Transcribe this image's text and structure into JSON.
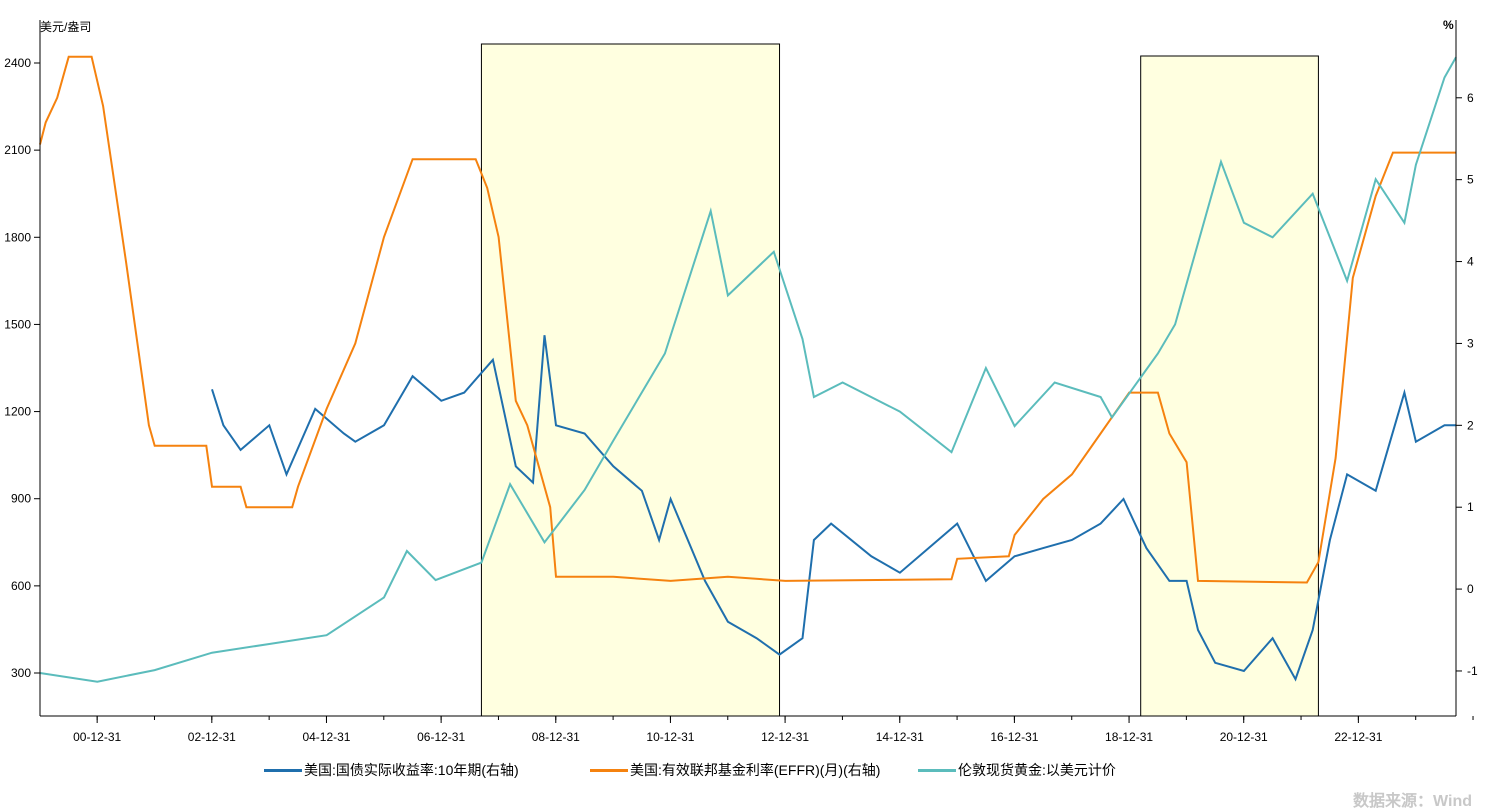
{
  "chart_data": {
    "type": "line",
    "left_axis": {
      "label": "美元/盎司",
      "ticks": [
        300,
        600,
        900,
        1200,
        1500,
        1800,
        2100,
        2400
      ],
      "range": [
        152,
        2548
      ]
    },
    "right_axis": {
      "label": "%",
      "ticks": [
        -1,
        0,
        1,
        2,
        3,
        4,
        5,
        6
      ],
      "range": [
        -1.55,
        6.95
      ]
    },
    "x_axis": {
      "ticks": [
        "00-12-31",
        "02-12-31",
        "04-12-31",
        "06-12-31",
        "08-12-31",
        "10-12-31",
        "12-12-31",
        "14-12-31",
        "16-12-31",
        "18-12-31",
        "20-12-31",
        "22-12-31"
      ],
      "range": [
        2000.0,
        2024.7
      ]
    },
    "highlight_periods": [
      [
        2007.7,
        2012.9
      ],
      [
        2019.2,
        2022.3
      ]
    ],
    "highlight_color": "#ffffe0",
    "series": [
      {
        "name": "美国:国债实际收益率:10年期(右轴)",
        "axis": "right",
        "color": "#1f6fad",
        "points": [
          [
            2003.0,
            2.44
          ],
          [
            2003.2,
            2.0
          ],
          [
            2003.5,
            1.7
          ],
          [
            2004.0,
            2.0
          ],
          [
            2004.3,
            1.4
          ],
          [
            2004.8,
            2.2
          ],
          [
            2005.3,
            1.9
          ],
          [
            2005.5,
            1.8
          ],
          [
            2006.0,
            2.0
          ],
          [
            2006.5,
            2.6
          ],
          [
            2007.0,
            2.3
          ],
          [
            2007.4,
            2.4
          ],
          [
            2007.9,
            2.8
          ],
          [
            2008.3,
            1.5
          ],
          [
            2008.6,
            1.3
          ],
          [
            2008.8,
            3.1
          ],
          [
            2009.0,
            2.0
          ],
          [
            2009.5,
            1.9
          ],
          [
            2010.0,
            1.5
          ],
          [
            2010.5,
            1.2
          ],
          [
            2010.8,
            0.6
          ],
          [
            2011.0,
            1.1
          ],
          [
            2011.6,
            0.1
          ],
          [
            2012.0,
            -0.4
          ],
          [
            2012.5,
            -0.6
          ],
          [
            2012.9,
            -0.8
          ],
          [
            2013.3,
            -0.6
          ],
          [
            2013.5,
            0.6
          ],
          [
            2013.8,
            0.8
          ],
          [
            2014.5,
            0.4
          ],
          [
            2015.0,
            0.2
          ],
          [
            2015.5,
            0.5
          ],
          [
            2016.0,
            0.8
          ],
          [
            2016.5,
            0.1
          ],
          [
            2017.0,
            0.4
          ],
          [
            2017.5,
            0.5
          ],
          [
            2018.0,
            0.6
          ],
          [
            2018.5,
            0.8
          ],
          [
            2018.9,
            1.1
          ],
          [
            2019.3,
            0.5
          ],
          [
            2019.7,
            0.1
          ],
          [
            2020.0,
            0.1
          ],
          [
            2020.2,
            -0.5
          ],
          [
            2020.5,
            -0.9
          ],
          [
            2021.0,
            -1.0
          ],
          [
            2021.5,
            -0.6
          ],
          [
            2021.9,
            -1.1
          ],
          [
            2022.2,
            -0.5
          ],
          [
            2022.5,
            0.6
          ],
          [
            2022.8,
            1.4
          ],
          [
            2023.3,
            1.2
          ],
          [
            2023.8,
            2.4
          ],
          [
            2024.0,
            1.8
          ],
          [
            2024.5,
            2.0
          ],
          [
            2024.7,
            2.0
          ]
        ]
      },
      {
        "name": "美国:有效联邦基金利率(EFFR)(月)(右轴)",
        "axis": "right",
        "color": "#f5820f",
        "points": [
          [
            2000.0,
            5.43
          ],
          [
            2000.1,
            5.7
          ],
          [
            2000.3,
            6.0
          ],
          [
            2000.5,
            6.5
          ],
          [
            2000.9,
            6.5
          ],
          [
            2001.1,
            5.9
          ],
          [
            2001.5,
            4.0
          ],
          [
            2001.9,
            2.0
          ],
          [
            2002.0,
            1.75
          ],
          [
            2002.9,
            1.75
          ],
          [
            2003.0,
            1.25
          ],
          [
            2003.5,
            1.25
          ],
          [
            2003.6,
            1.0
          ],
          [
            2004.4,
            1.0
          ],
          [
            2004.5,
            1.25
          ],
          [
            2005.0,
            2.2
          ],
          [
            2005.5,
            3.0
          ],
          [
            2006.0,
            4.3
          ],
          [
            2006.5,
            5.25
          ],
          [
            2007.6,
            5.25
          ],
          [
            2007.8,
            4.9
          ],
          [
            2008.0,
            4.3
          ],
          [
            2008.3,
            2.3
          ],
          [
            2008.5,
            2.0
          ],
          [
            2008.9,
            1.0
          ],
          [
            2009.0,
            0.15
          ],
          [
            2010.0,
            0.15
          ],
          [
            2011.0,
            0.1
          ],
          [
            2012.0,
            0.15
          ],
          [
            2013.0,
            0.1
          ],
          [
            2015.9,
            0.12
          ],
          [
            2016.0,
            0.37
          ],
          [
            2016.9,
            0.4
          ],
          [
            2017.0,
            0.66
          ],
          [
            2017.5,
            1.1
          ],
          [
            2018.0,
            1.4
          ],
          [
            2018.5,
            1.9
          ],
          [
            2019.0,
            2.4
          ],
          [
            2019.5,
            2.4
          ],
          [
            2019.7,
            1.9
          ],
          [
            2020.0,
            1.55
          ],
          [
            2020.2,
            0.1
          ],
          [
            2022.1,
            0.08
          ],
          [
            2022.3,
            0.33
          ],
          [
            2022.6,
            1.6
          ],
          [
            2022.9,
            3.8
          ],
          [
            2023.3,
            4.8
          ],
          [
            2023.6,
            5.33
          ],
          [
            2024.7,
            5.33
          ]
        ]
      },
      {
        "name": "伦敦现货黄金:以美元计价",
        "axis": "left",
        "color": "#5bbcbc",
        "points": [
          [
            2000.0,
            300
          ],
          [
            2001.0,
            270
          ],
          [
            2002.0,
            310
          ],
          [
            2003.0,
            370
          ],
          [
            2004.0,
            400
          ],
          [
            2005.0,
            430
          ],
          [
            2006.0,
            560
          ],
          [
            2006.4,
            720
          ],
          [
            2006.9,
            620
          ],
          [
            2007.7,
            680
          ],
          [
            2008.2,
            950
          ],
          [
            2008.8,
            750
          ],
          [
            2009.5,
            930
          ],
          [
            2010.0,
            1100
          ],
          [
            2010.9,
            1400
          ],
          [
            2011.7,
            1890
          ],
          [
            2012.0,
            1600
          ],
          [
            2012.8,
            1750
          ],
          [
            2013.3,
            1450
          ],
          [
            2013.5,
            1250
          ],
          [
            2014.0,
            1300
          ],
          [
            2015.0,
            1200
          ],
          [
            2015.9,
            1060
          ],
          [
            2016.5,
            1350
          ],
          [
            2017.0,
            1150
          ],
          [
            2017.7,
            1300
          ],
          [
            2018.5,
            1250
          ],
          [
            2018.7,
            1180
          ],
          [
            2019.5,
            1400
          ],
          [
            2019.8,
            1500
          ],
          [
            2020.6,
            2060
          ],
          [
            2021.0,
            1850
          ],
          [
            2021.5,
            1800
          ],
          [
            2022.2,
            1950
          ],
          [
            2022.8,
            1650
          ],
          [
            2023.3,
            2000
          ],
          [
            2023.8,
            1850
          ],
          [
            2024.0,
            2050
          ],
          [
            2024.5,
            2350
          ],
          [
            2024.7,
            2420
          ]
        ]
      }
    ]
  },
  "source": "数据来源：Wind"
}
